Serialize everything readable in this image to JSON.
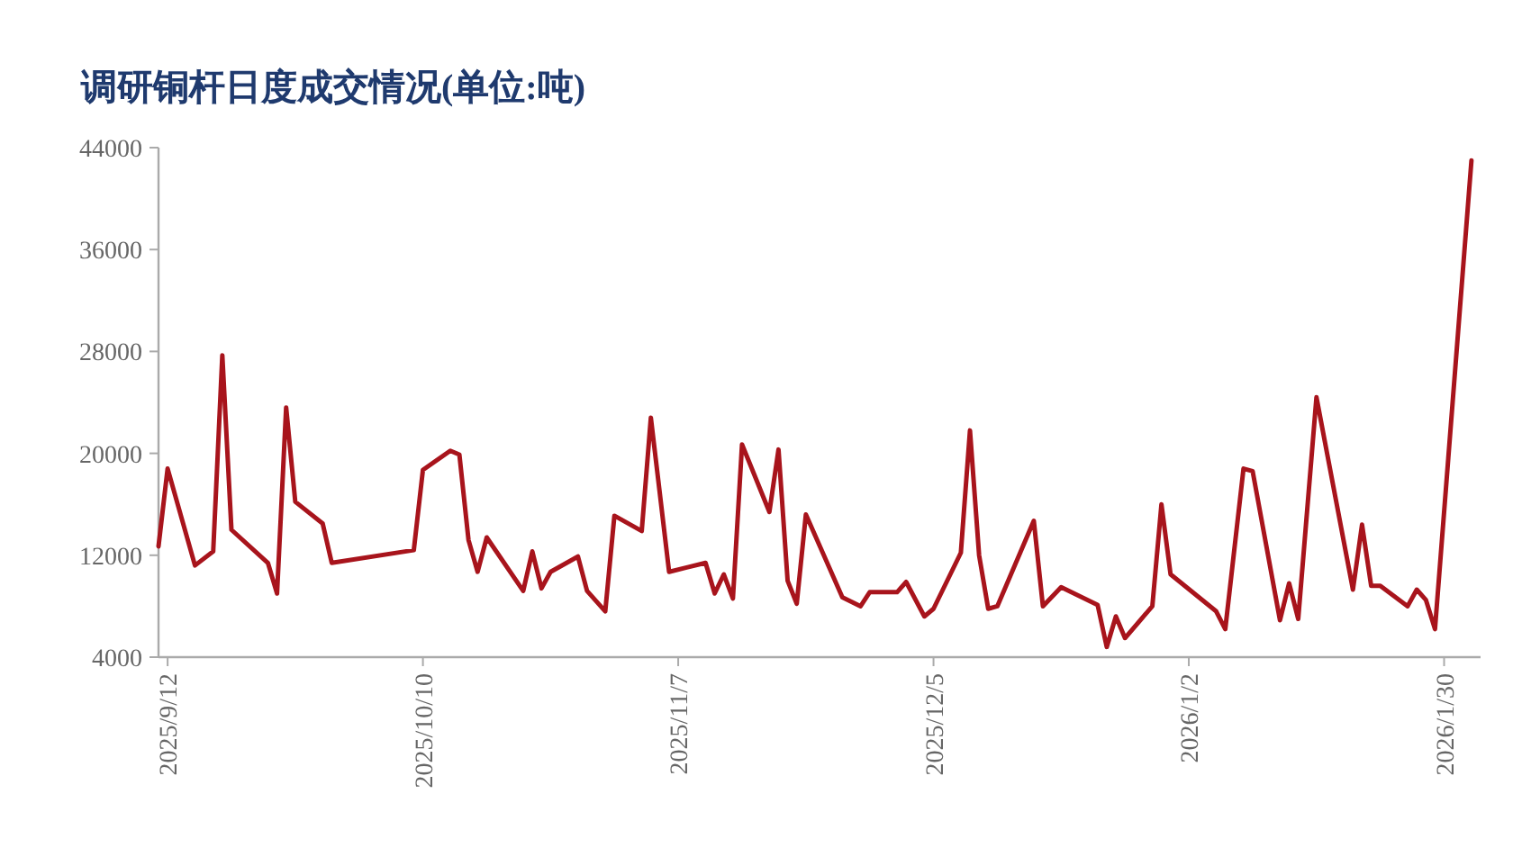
{
  "chart_data": {
    "type": "line",
    "title": "调研铜杆日度成交情况(单位:吨)",
    "x": [
      "2025-09-11",
      "2025-09-12",
      "2025-09-15",
      "2025-09-17",
      "2025-09-18",
      "2025-09-19",
      "2025-09-23",
      "2025-09-24",
      "2025-09-25",
      "2025-09-26",
      "2025-09-29",
      "2025-09-30",
      "2025-10-09",
      "2025-10-10",
      "2025-10-13",
      "2025-10-14",
      "2025-10-15",
      "2025-10-16",
      "2025-10-17",
      "2025-10-21",
      "2025-10-22",
      "2025-10-23",
      "2025-10-24",
      "2025-10-27",
      "2025-10-28",
      "2025-10-30",
      "2025-10-31",
      "2025-11-03",
      "2025-11-04",
      "2025-11-06",
      "2025-11-10",
      "2025-11-11",
      "2025-11-12",
      "2025-11-13",
      "2025-11-14",
      "2025-11-17",
      "2025-11-18",
      "2025-11-19",
      "2025-11-20",
      "2025-11-21",
      "2025-11-25",
      "2025-11-27",
      "2025-11-28",
      "2025-12-01",
      "2025-12-02",
      "2025-12-04",
      "2025-12-05",
      "2025-12-08",
      "2025-12-09",
      "2025-12-10",
      "2025-12-11",
      "2025-12-12",
      "2025-12-16",
      "2025-12-17",
      "2025-12-19",
      "2025-12-23",
      "2025-12-24",
      "2025-12-25",
      "2025-12-26",
      "2025-12-29",
      "2025-12-30",
      "2025-12-31",
      "2026-01-05",
      "2026-01-06",
      "2026-01-08",
      "2026-01-09",
      "2026-01-12",
      "2026-01-13",
      "2026-01-14",
      "2026-01-16",
      "2026-01-20",
      "2026-01-21",
      "2026-01-22",
      "2026-01-23",
      "2026-01-26",
      "2026-01-27",
      "2026-01-28",
      "2026-01-29",
      "2026-02-02"
    ],
    "series": [
      {
        "color": "#a8141c",
        "values": [
          12700,
          18800,
          11200,
          12300,
          27700,
          14000,
          11400,
          9000,
          23600,
          16200,
          14500,
          11400,
          12400,
          18700,
          20200,
          19900,
          13200,
          10700,
          13400,
          9200,
          12300,
          9400,
          10700,
          11900,
          9200,
          7600,
          15100,
          13900,
          22800,
          10700,
          11400,
          9000,
          10500,
          8600,
          20700,
          15400,
          20300,
          10000,
          8200,
          15200,
          8700,
          8000,
          9100,
          9100,
          9900,
          7200,
          7800,
          12200,
          21800,
          12000,
          7800,
          8000,
          14700,
          8000,
          9500,
          8100,
          4800,
          7200,
          5500,
          8000,
          16000,
          10500,
          7600,
          6200,
          18800,
          18600,
          6900,
          9800,
          7000,
          24400,
          9300,
          14400,
          9600,
          9600,
          8000,
          9300,
          8500,
          6200,
          43000
        ]
      }
    ],
    "xlim": [
      "2025-09-11",
      "2026-02-03"
    ],
    "ylim": [
      4000,
      44000
    ],
    "xticks": [
      {
        "value": "2025-09-12",
        "label": "2025/9/12"
      },
      {
        "value": "2025-10-10",
        "label": "2025/10/10"
      },
      {
        "value": "2025-11-07",
        "label": "2025/11/7"
      },
      {
        "value": "2025-12-05",
        "label": "2025/12/5"
      },
      {
        "value": "2026-01-02",
        "label": "2026/1/2"
      },
      {
        "value": "2026-01-30",
        "label": "2026/1/30"
      }
    ],
    "yticks": [
      4000,
      12000,
      20000,
      28000,
      36000,
      44000
    ]
  }
}
